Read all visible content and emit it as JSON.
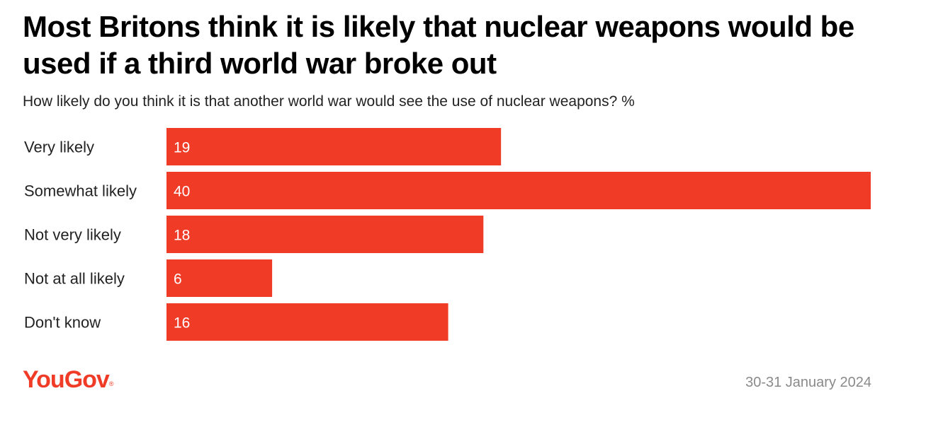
{
  "header": {
    "title": "Most Britons think it is likely that nuclear weapons would be used if a third world war broke out",
    "subtitle": "How likely do you think it is that another world war would see the use of nuclear weapons? %"
  },
  "chart_data": {
    "type": "bar",
    "orientation": "horizontal",
    "title": "Most Britons think it is likely that nuclear weapons would be used if a third world war broke out",
    "subtitle": "How likely do you think it is that another world war would see the use of nuclear weapons? %",
    "categories": [
      "Very likely",
      "Somewhat likely",
      "Not very likely",
      "Not at all likely",
      "Don't know"
    ],
    "values": [
      19,
      40,
      18,
      6,
      16
    ],
    "xlabel": "",
    "ylabel": "",
    "xlim": [
      0,
      40
    ],
    "grid": false,
    "bar_color": "#f03b27",
    "value_label_color": "#ffffff"
  },
  "footer": {
    "brand": "YouGov",
    "brand_mark": "®",
    "brand_color": "#f03b27",
    "date": "30-31 January 2024"
  }
}
